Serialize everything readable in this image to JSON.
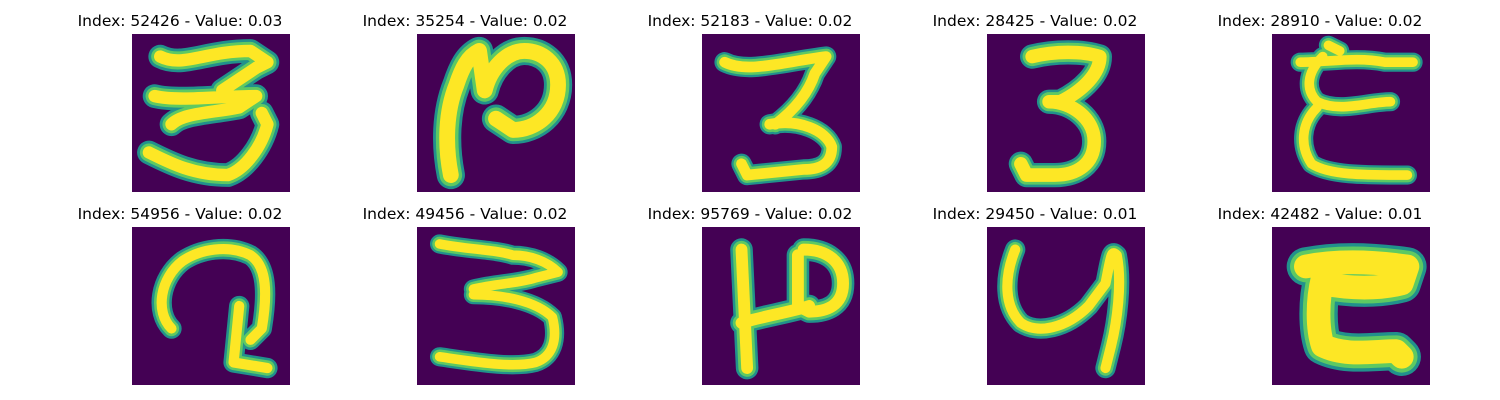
{
  "colors": {
    "background": "#440154",
    "stroke_core": "#fde725",
    "stroke_mid": "#5ec962",
    "stroke_edge": "#21918c"
  },
  "samples": [
    {
      "title": "Index: 52426 - Value: 0.03",
      "glyph": "3"
    },
    {
      "title": "Index: 35254 - Value: 0.02",
      "glyph": "2"
    },
    {
      "title": "Index: 52183 - Value: 0.02",
      "glyph": "3"
    },
    {
      "title": "Index: 28425 - Value: 0.02",
      "glyph": "3"
    },
    {
      "title": "Index: 28910 - Value: 0.02",
      "glyph": "3"
    },
    {
      "title": "Index: 54956 - Value: 0.02",
      "glyph": "2"
    },
    {
      "title": "Index: 49456 - Value: 0.02",
      "glyph": "3"
    },
    {
      "title": "Index: 95769 - Value: 0.02",
      "glyph": "2"
    },
    {
      "title": "Index: 29450 - Value: 0.01",
      "glyph": "4"
    },
    {
      "title": "Index: 42482 - Value: 0.01",
      "glyph": "3"
    }
  ]
}
